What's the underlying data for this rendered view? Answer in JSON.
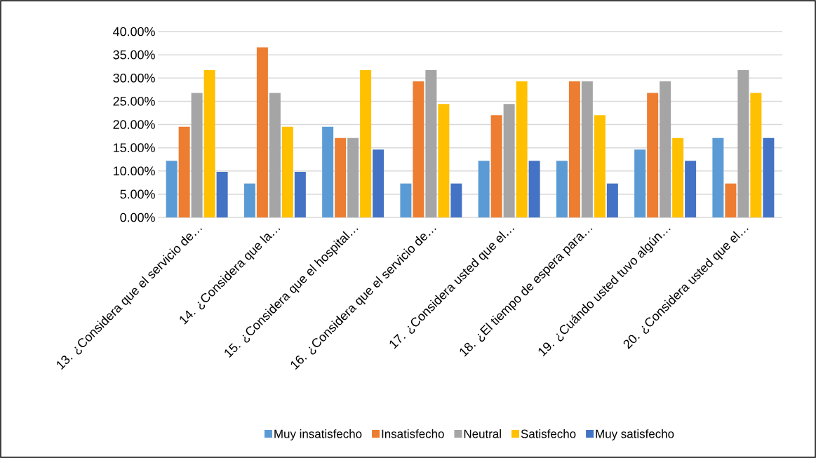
{
  "chart_data": {
    "type": "bar",
    "categories": [
      "13. ¿Considera que el servicio de…",
      "14. ¿Considera que la…",
      "15. ¿Considera que el hospital…",
      "16. ¿Considera que el servicio de…",
      "17. ¿Considera usted que el…",
      "18. ¿El tiempo de espera para…",
      "19. ¿Cuándo usted tuvo algún…",
      "20. ¿Considera usted que el…"
    ],
    "series": [
      {
        "name": "Muy insatisfecho",
        "color": "#5b9bd5",
        "values": [
          12.2,
          7.3,
          19.5,
          7.3,
          12.2,
          12.2,
          14.6,
          17.1
        ]
      },
      {
        "name": "Insatisfecho",
        "color": "#ed7d31",
        "values": [
          19.5,
          36.6,
          17.1,
          29.3,
          22.0,
          29.3,
          26.8,
          7.3
        ]
      },
      {
        "name": "Neutral",
        "color": "#a5a5a5",
        "values": [
          26.8,
          26.8,
          17.1,
          31.7,
          24.4,
          29.3,
          29.3,
          31.7
        ]
      },
      {
        "name": "Satisfecho",
        "color": "#ffc000",
        "values": [
          31.7,
          19.5,
          31.7,
          24.4,
          29.3,
          22.0,
          17.1,
          26.8
        ]
      },
      {
        "name": "Muy satisfecho",
        "color": "#4472c4",
        "values": [
          9.8,
          9.8,
          14.6,
          7.3,
          12.2,
          7.3,
          12.2,
          17.1
        ]
      }
    ],
    "ylim": [
      0,
      40
    ],
    "yticks": [
      {
        "value": 0,
        "label": "0.00%"
      },
      {
        "value": 5,
        "label": "5.00%"
      },
      {
        "value": 10,
        "label": "10.00%"
      },
      {
        "value": 15,
        "label": "15.00%"
      },
      {
        "value": 20,
        "label": "20.00%"
      },
      {
        "value": 25,
        "label": "25.00%"
      },
      {
        "value": 30,
        "label": "30.00%"
      },
      {
        "value": 35,
        "label": "35.00%"
      },
      {
        "value": 40,
        "label": "40.00%"
      }
    ],
    "grid": "y",
    "legend": "bottom"
  }
}
